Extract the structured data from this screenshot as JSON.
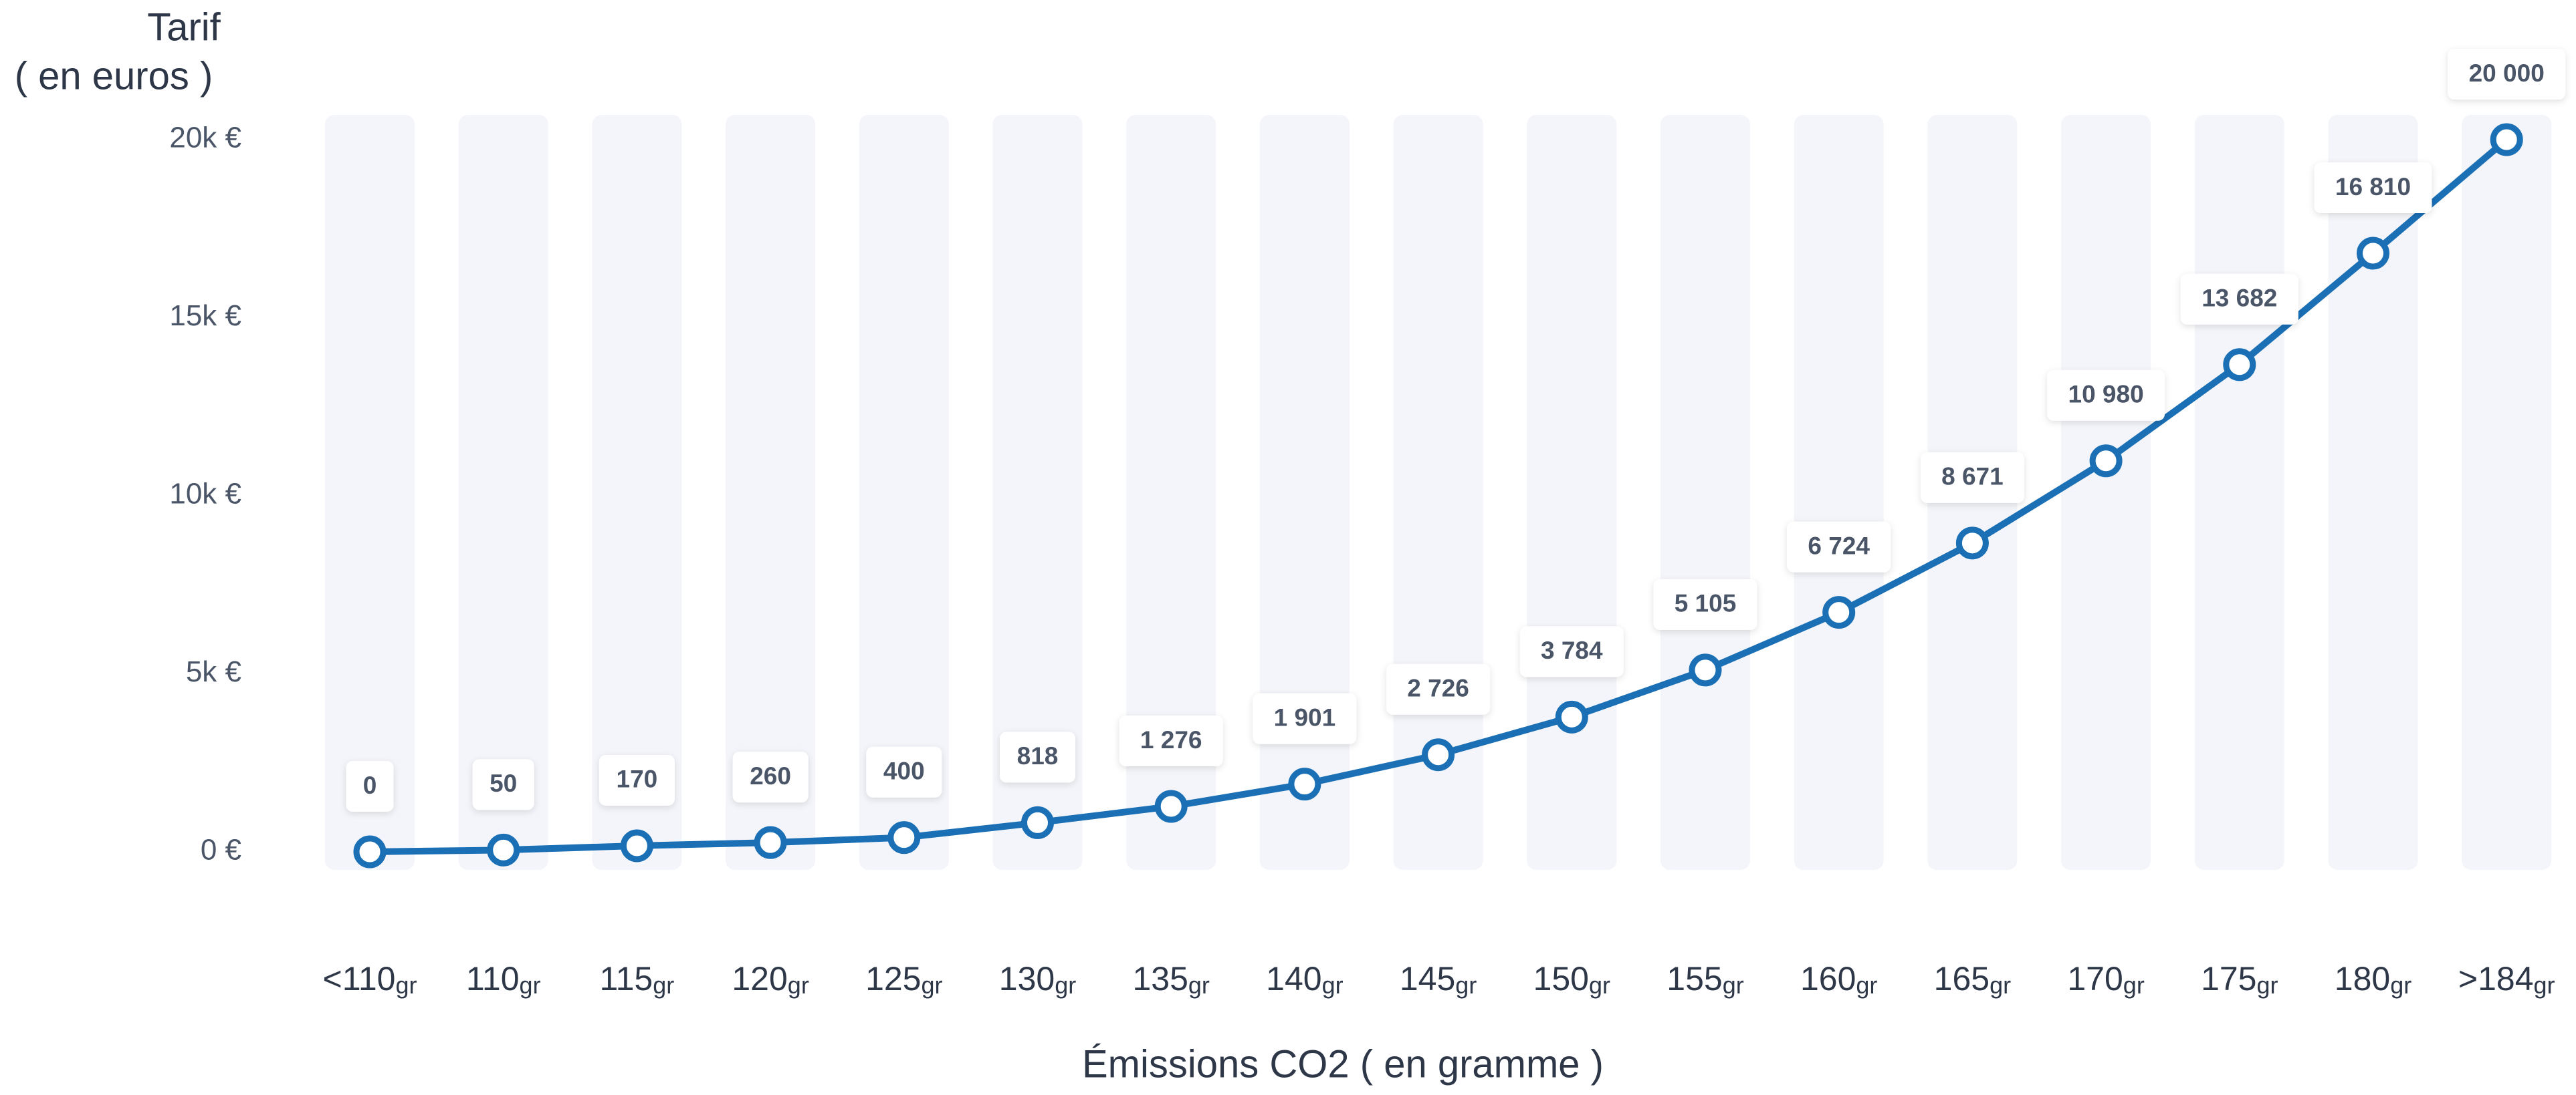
{
  "chart_data": {
    "type": "line",
    "ylabel_lines": [
      "Tarif",
      "( en euros )"
    ],
    "xlabel": "Émissions CO2 ( en gramme )",
    "categories": [
      "<110",
      "110",
      "115",
      "120",
      "125",
      "130",
      "135",
      "140",
      "145",
      "150",
      "155",
      "160",
      "165",
      "170",
      "175",
      "180",
      ">184"
    ],
    "category_unit": "gr",
    "values": [
      0,
      50,
      170,
      260,
      400,
      818,
      1276,
      1901,
      2726,
      3784,
      5105,
      6724,
      8671,
      10980,
      13682,
      16810,
      20000
    ],
    "value_labels": [
      "0",
      "50",
      "170",
      "260",
      "400",
      "818",
      "1 276",
      "1 901",
      "2 726",
      "3 784",
      "5 105",
      "6 724",
      "8 671",
      "10 980",
      "13 682",
      "16 810",
      "20 000"
    ],
    "color": "#1a6fb5",
    "ylim": [
      0,
      20000
    ],
    "yticks": [
      {
        "value": 0,
        "label": "0 €"
      },
      {
        "value": 5000,
        "label": "5k €"
      },
      {
        "value": 10000,
        "label": "10k €"
      },
      {
        "value": 15000,
        "label": "15k €"
      },
      {
        "value": 20000,
        "label": "20k €"
      }
    ]
  }
}
